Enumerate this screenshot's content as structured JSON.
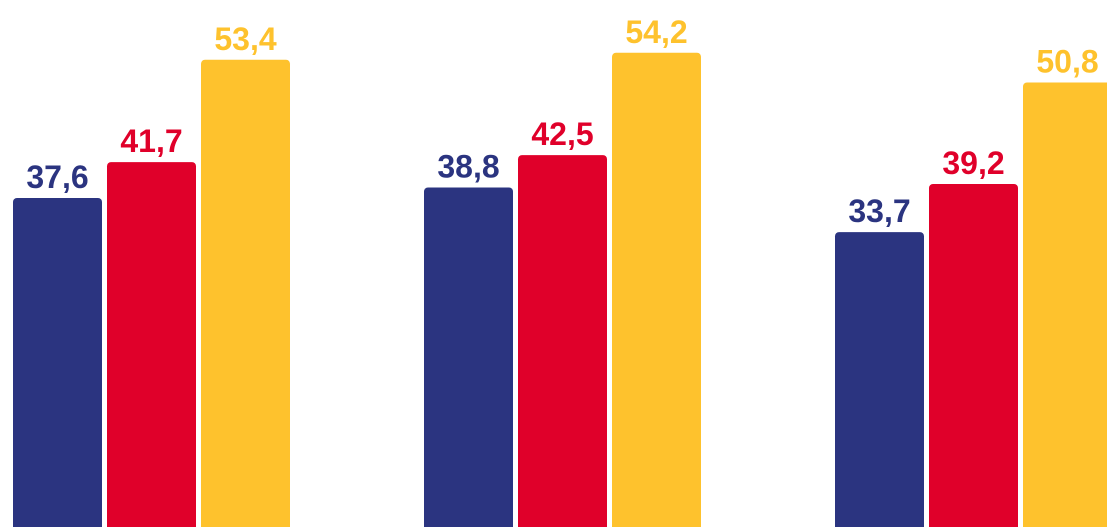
{
  "chart_data": {
    "type": "bar",
    "groups": 3,
    "series": [
      {
        "color": "#2b3480",
        "values": [
          37.6,
          38.8,
          33.7
        ]
      },
      {
        "color": "#e0002a",
        "values": [
          41.7,
          42.5,
          39.2
        ]
      },
      {
        "color": "#fec22d",
        "values": [
          53.4,
          54.2,
          50.8
        ]
      }
    ],
    "value_labels": [
      [
        "37,6",
        "38,8",
        "33,7"
      ],
      [
        "41,7",
        "42,5",
        "39,2"
      ],
      [
        "53,4",
        "54,2",
        "50,8"
      ]
    ],
    "ylim": [
      0,
      60
    ],
    "decimal_separator": ",",
    "axes_visible": false,
    "grid": false,
    "legend": "none",
    "background": "#ffffff"
  }
}
